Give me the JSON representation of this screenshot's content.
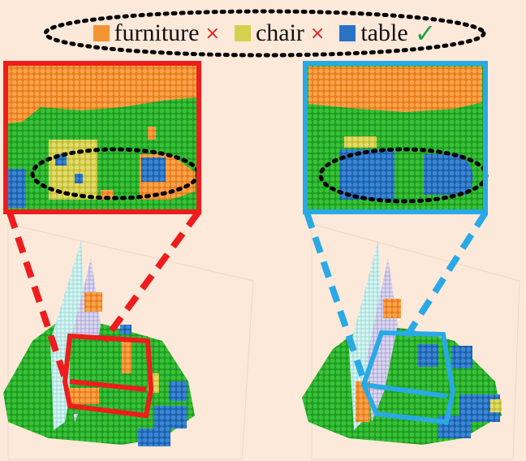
{
  "colors": {
    "background": "#fde9d9",
    "furniture": "#f39433",
    "chair": "#d7d04e",
    "table": "#2a72c4",
    "floor": "#2db32d",
    "wall": "#c9c5e6",
    "wall_alt": "#c4ece9",
    "left_highlight": "#ee1c1c",
    "right_highlight": "#29a9e6",
    "wrong_mark": "#e8201d",
    "correct_mark": "#22a344"
  },
  "legend": {
    "items": [
      {
        "key": "furniture",
        "label": "furniture",
        "mark": "×",
        "correct": false
      },
      {
        "key": "chair",
        "label": "chair",
        "mark": "×",
        "correct": false
      },
      {
        "key": "table",
        "label": "table",
        "mark": "✓",
        "correct": true
      }
    ]
  },
  "panels": {
    "left": {
      "zoom_label": "",
      "region": "table",
      "prediction": "furniture + chair + table (mixed)"
    },
    "right": {
      "zoom_label": "",
      "region": "table",
      "prediction": "table"
    }
  },
  "icons": {
    "wrong": "cross-icon",
    "correct": "checkmark-icon"
  }
}
